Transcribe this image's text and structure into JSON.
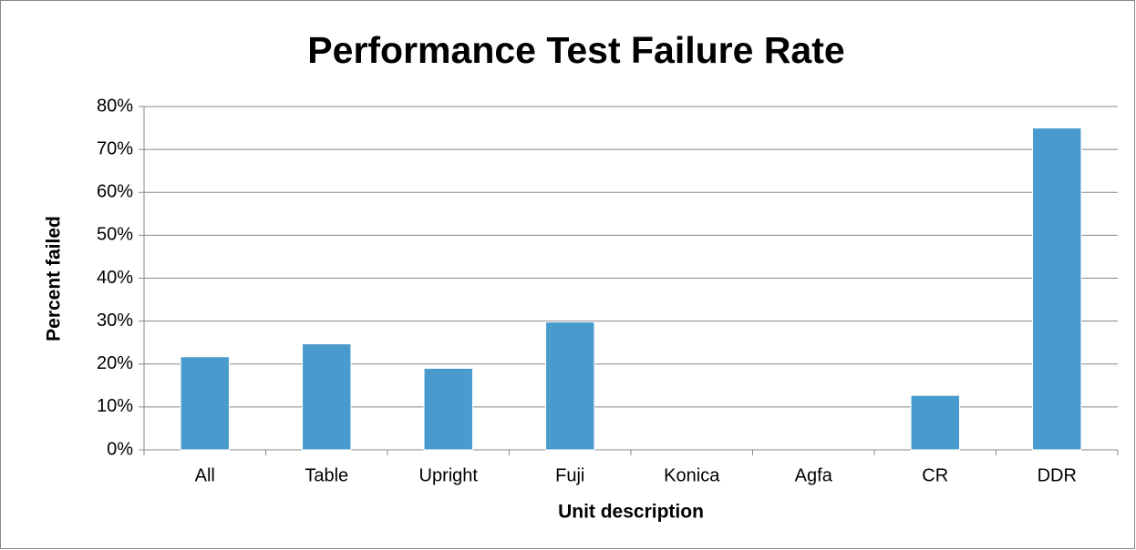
{
  "chart_data": {
    "type": "bar",
    "title": "Performance Test Failure Rate",
    "xlabel": "Unit description",
    "ylabel": "Percent failed",
    "categories": [
      "All",
      "Table",
      "Upright",
      "Fuji",
      "Konica",
      "Agfa",
      "CR",
      "DDR"
    ],
    "values": [
      21.7,
      24.7,
      19,
      29.8,
      0,
      0,
      12.7,
      75
    ],
    "color": "#4a9bcd",
    "ylim": [
      0,
      80
    ],
    "yticks": [
      {
        "value": 0,
        "label": "0%"
      },
      {
        "value": 10,
        "label": "10%"
      },
      {
        "value": 20,
        "label": "20%"
      },
      {
        "value": 30,
        "label": "30%"
      },
      {
        "value": 40,
        "label": "40%"
      },
      {
        "value": 50,
        "label": "50%"
      },
      {
        "value": 60,
        "label": "60%"
      },
      {
        "value": 70,
        "label": "70%"
      },
      {
        "value": 80,
        "label": "80%"
      }
    ],
    "grid": true
  }
}
